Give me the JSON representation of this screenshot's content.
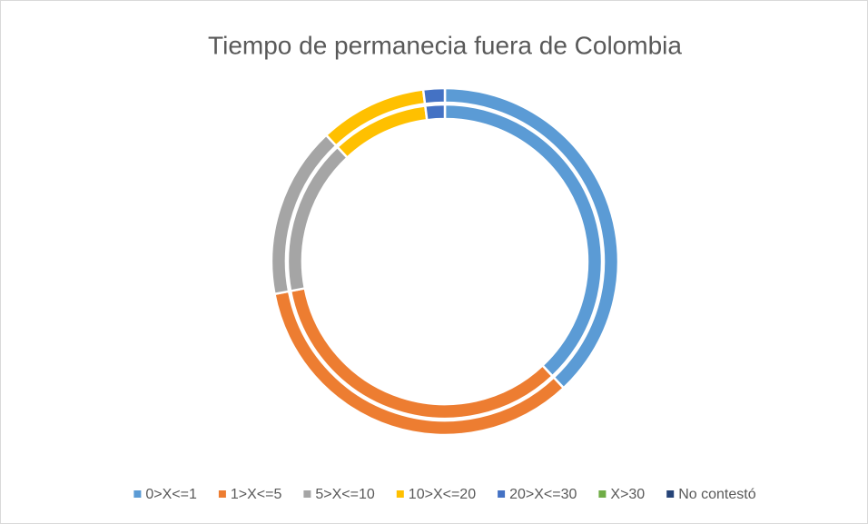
{
  "chart_data": {
    "type": "doughnut",
    "title": "Tiempo de permanecia fuera de Colombia",
    "categories": [
      "0>X<=1",
      "1>X<=5",
      "5>X<=10",
      "10>X<=20",
      "20>X<=30",
      "X>30",
      "No contestó"
    ],
    "colors": [
      "#5b9bd5",
      "#ed7d31",
      "#a5a5a5",
      "#ffc000",
      "#4472c4",
      "#70ad47",
      "#264478"
    ],
    "series": [
      {
        "values": [
          38,
          34,
          16,
          10,
          2,
          0,
          0
        ]
      },
      {
        "values": [
          38,
          34,
          16,
          10,
          2,
          0,
          0
        ]
      }
    ],
    "legend": "bottom"
  }
}
